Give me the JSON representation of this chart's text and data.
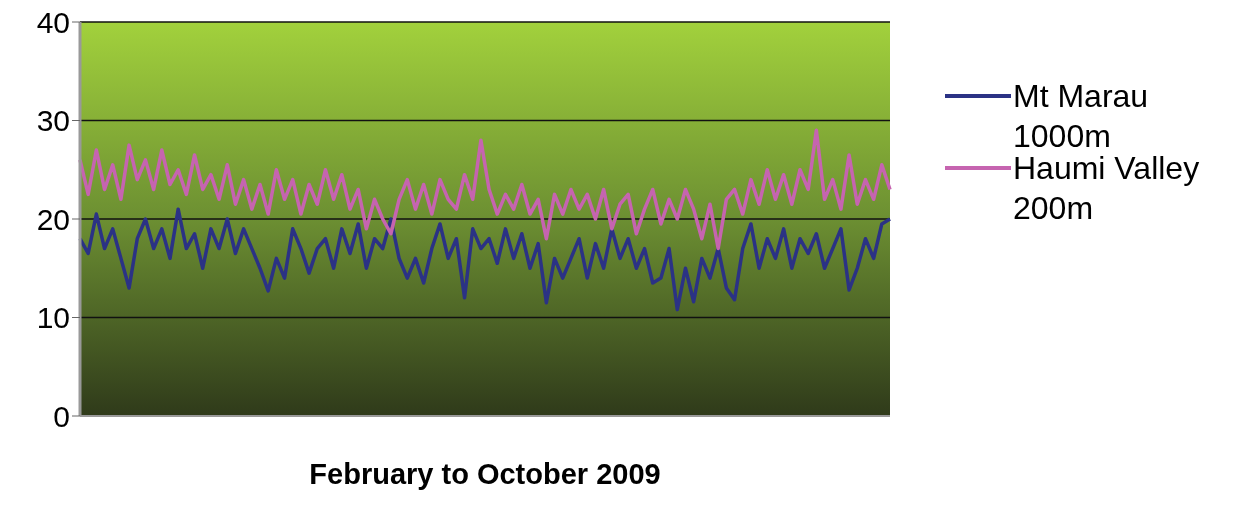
{
  "chart_data": {
    "type": "line",
    "xlabel": "February to October 2009",
    "categories": [
      null,
      null,
      null,
      null,
      null,
      null,
      null,
      null,
      null,
      null,
      null,
      null,
      null,
      null,
      null,
      null,
      null,
      null,
      null,
      null,
      null,
      null,
      null,
      null,
      null,
      null,
      null,
      null,
      null,
      null,
      null,
      null,
      null,
      null,
      null,
      null,
      null,
      null,
      null,
      null,
      null,
      null,
      null,
      null,
      null,
      null,
      null,
      null,
      null,
      null,
      null,
      null,
      null,
      null,
      null,
      null,
      null,
      null,
      null,
      null,
      null,
      null,
      null,
      null,
      null,
      null,
      null,
      null,
      null,
      null,
      null,
      null,
      null,
      null,
      null,
      null,
      null,
      null,
      null,
      null,
      null,
      null,
      null,
      null,
      null,
      null,
      null,
      null,
      null,
      null,
      null,
      null,
      null,
      null,
      null,
      null,
      null,
      null,
      null,
      null
    ],
    "series": [
      {
        "name": "Mt Marau 1000m",
        "color": "#2b3285",
        "values": [
          18,
          16.5,
          20.5,
          17,
          19,
          16,
          13,
          18,
          20,
          17,
          19,
          16,
          21,
          17,
          18.5,
          15,
          19,
          17,
          20,
          16.5,
          19,
          17,
          15,
          12.7,
          16,
          14,
          19,
          17,
          14.5,
          17,
          18,
          15,
          19,
          16.5,
          19.5,
          15,
          18,
          17,
          20,
          16,
          14,
          16,
          13.5,
          17,
          19.5,
          16,
          18,
          12,
          19,
          17,
          18,
          15.5,
          19,
          16,
          18.5,
          15,
          17.5,
          11.5,
          16,
          14,
          16,
          18,
          14,
          17.5,
          15,
          19,
          16,
          18,
          15,
          17,
          13.5,
          14,
          17,
          10.8,
          15,
          11.6,
          16,
          14,
          17,
          13,
          11.8,
          17,
          19.5,
          15,
          18,
          16,
          19,
          15,
          18,
          16.5,
          18.5,
          15,
          17,
          19,
          12.8,
          15,
          18,
          16,
          19.5,
          20
        ]
      },
      {
        "name": "Haumi Valley 200m",
        "color": "#c664b0",
        "values": [
          26,
          22.5,
          27,
          23,
          25.5,
          22,
          27.5,
          24,
          26,
          23,
          27,
          23.5,
          25,
          22.5,
          26.5,
          23,
          24.5,
          22,
          25.5,
          21.5,
          24,
          21,
          23.5,
          20.5,
          25,
          22,
          24,
          20.5,
          23.5,
          21.5,
          25,
          22,
          24.5,
          21,
          23,
          19,
          22,
          20,
          18.5,
          22,
          24,
          21,
          23.5,
          20.5,
          24,
          22,
          21,
          24.5,
          22,
          28,
          23,
          20.5,
          22.5,
          21,
          23.5,
          20.5,
          22,
          18,
          22.5,
          20.5,
          23,
          21,
          22.5,
          20,
          23,
          19,
          21.5,
          22.5,
          18.5,
          21,
          23,
          19.5,
          22,
          20,
          23,
          21,
          18,
          21.5,
          17,
          22,
          23,
          20.5,
          24,
          21.5,
          25,
          22,
          24.5,
          21.5,
          25,
          23,
          29,
          22,
          24,
          21,
          26.5,
          21.5,
          24,
          22,
          25.5,
          23
        ]
      }
    ],
    "ylim": [
      0,
      40
    ],
    "yticks": [
      0,
      10,
      20,
      30,
      40
    ],
    "grid": "y",
    "legend": "right",
    "marker": "none",
    "line_style": "solid"
  }
}
